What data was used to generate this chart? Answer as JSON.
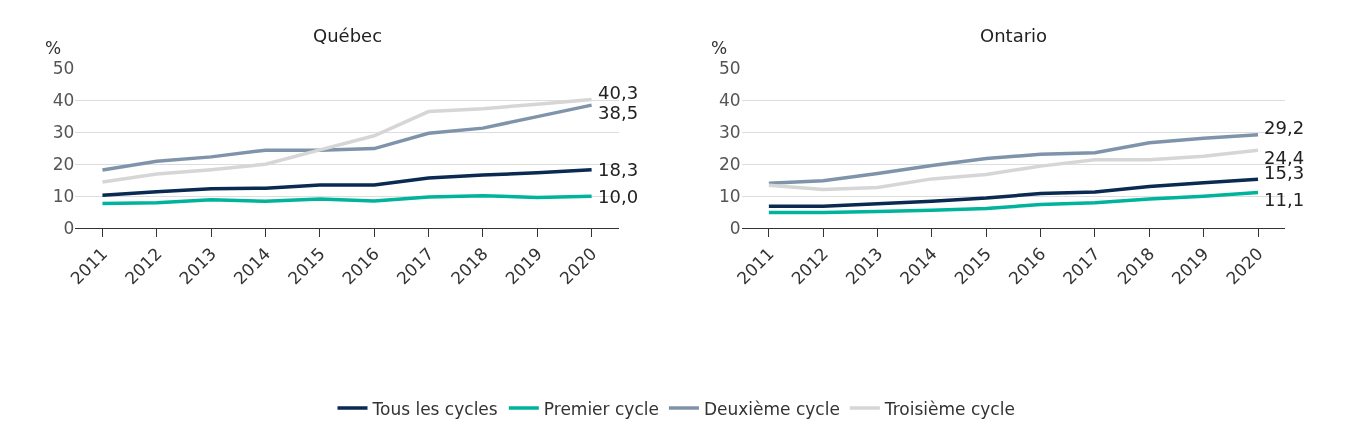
{
  "chart_data": [
    {
      "type": "line",
      "title": "Québec",
      "ylabel": "%",
      "categories": [
        "2011",
        "2012",
        "2013",
        "2014",
        "2015",
        "2016",
        "2017",
        "2018",
        "2019",
        "2020"
      ],
      "ylim": [
        0,
        50
      ],
      "yticks": [
        0,
        10,
        20,
        30,
        40,
        50
      ],
      "grid": "y",
      "legend": "bottom",
      "marker": "none",
      "line_style": "solid",
      "series": [
        {
          "name": "Tous les cycles",
          "color": "#0a2a52",
          "values": [
            10.3,
            11.4,
            12.3,
            12.5,
            13.5,
            13.5,
            15.7,
            16.6,
            17.3,
            18.3
          ],
          "value_labels": [
            null,
            null,
            null,
            null,
            null,
            null,
            null,
            null,
            null,
            "18,3"
          ]
        },
        {
          "name": "Premier cycle",
          "color": "#00b39b",
          "values": [
            7.7,
            7.9,
            8.9,
            8.4,
            9.1,
            8.5,
            9.7,
            10.1,
            9.6,
            10.0
          ],
          "value_labels": [
            null,
            null,
            null,
            null,
            null,
            null,
            null,
            null,
            null,
            "10,0"
          ]
        },
        {
          "name": "Deuxième cycle",
          "color": "#7f94ab",
          "values": [
            18.2,
            20.9,
            22.3,
            24.4,
            24.4,
            24.9,
            29.7,
            31.3,
            34.9,
            38.5
          ],
          "value_labels": [
            null,
            null,
            null,
            null,
            null,
            null,
            null,
            null,
            null,
            "38,5"
          ]
        },
        {
          "name": "Troisième cycle",
          "color": "#d6d6d6",
          "values": [
            14.4,
            16.9,
            18.3,
            20.0,
            24.5,
            28.9,
            36.5,
            37.4,
            38.8,
            40.3
          ],
          "value_labels": [
            null,
            null,
            null,
            null,
            null,
            null,
            null,
            null,
            null,
            "40,3"
          ]
        }
      ]
    },
    {
      "type": "line",
      "title": "Ontario",
      "ylabel": "%",
      "categories": [
        "2011",
        "2012",
        "2013",
        "2014",
        "2015",
        "2016",
        "2017",
        "2018",
        "2019",
        "2020"
      ],
      "ylim": [
        0,
        50
      ],
      "yticks": [
        0,
        10,
        20,
        30,
        40,
        50
      ],
      "grid": "y",
      "legend": "bottom",
      "marker": "none",
      "line_style": "solid",
      "series": [
        {
          "name": "Tous les cycles",
          "color": "#0a2a52",
          "values": [
            6.8,
            6.8,
            7.6,
            8.4,
            9.4,
            10.8,
            11.3,
            13.0,
            14.2,
            15.3
          ],
          "value_labels": [
            null,
            null,
            null,
            null,
            null,
            null,
            null,
            null,
            null,
            "15,3"
          ]
        },
        {
          "name": "Premier cycle",
          "color": "#00b39b",
          "values": [
            4.9,
            4.9,
            5.2,
            5.6,
            6.1,
            7.4,
            7.9,
            9.1,
            10.0,
            11.1
          ],
          "value_labels": [
            null,
            null,
            null,
            null,
            null,
            null,
            null,
            null,
            null,
            "11,1"
          ]
        },
        {
          "name": "Deuxième cycle",
          "color": "#7f94ab",
          "values": [
            14.0,
            14.8,
            17.1,
            19.6,
            21.8,
            23.1,
            23.6,
            26.7,
            28.1,
            29.2
          ],
          "value_labels": [
            null,
            null,
            null,
            null,
            null,
            null,
            null,
            null,
            null,
            "29,2"
          ]
        },
        {
          "name": "Troisième cycle",
          "color": "#d6d6d6",
          "values": [
            13.4,
            12.1,
            12.7,
            15.4,
            16.8,
            19.4,
            21.4,
            21.4,
            22.5,
            24.4
          ],
          "value_labels": [
            null,
            null,
            null,
            null,
            null,
            null,
            null,
            null,
            null,
            "24,4"
          ]
        }
      ]
    }
  ]
}
